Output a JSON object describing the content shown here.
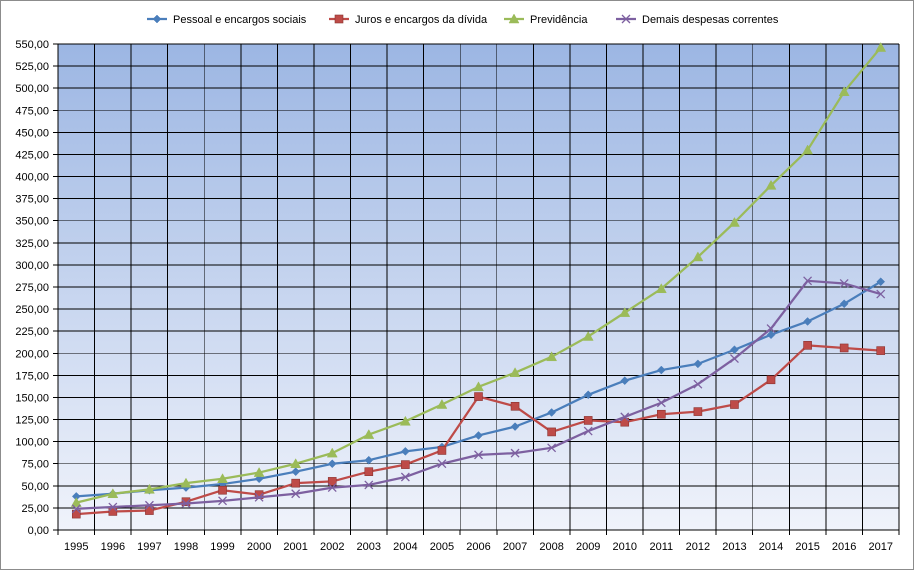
{
  "chart_data": {
    "type": "line",
    "title": "",
    "xlabel": "",
    "ylabel": "",
    "ylim": [
      0,
      550
    ],
    "y_ticks": [
      "0,00",
      "25,00",
      "50,00",
      "75,00",
      "100,00",
      "125,00",
      "150,00",
      "175,00",
      "200,00",
      "225,00",
      "250,00",
      "275,00",
      "300,00",
      "325,00",
      "350,00",
      "375,00",
      "400,00",
      "425,00",
      "450,00",
      "475,00",
      "500,00",
      "525,00",
      "550,00"
    ],
    "categories": [
      "1995",
      "1996",
      "1997",
      "1998",
      "1999",
      "2000",
      "2001",
      "2002",
      "2003",
      "2004",
      "2005",
      "2006",
      "2007",
      "2008",
      "2009",
      "2010",
      "2011",
      "2012",
      "2013",
      "2014",
      "2015",
      "2016",
      "2017"
    ],
    "grid": true,
    "legend_position": "top",
    "series": [
      {
        "name": "Pessoal e encargos sociais",
        "color": "#4a7ebb",
        "marker": "diamond",
        "values": [
          38,
          41,
          45,
          48,
          52,
          58,
          66,
          75,
          79,
          89,
          94,
          107,
          117,
          133,
          153,
          169,
          181,
          188,
          204,
          221,
          236,
          256,
          281
        ]
      },
      {
        "name": "Juros e encargos da dívida",
        "color": "#be4b48",
        "marker": "square",
        "values": [
          18,
          21,
          22,
          32,
          45,
          40,
          53,
          55,
          66,
          74,
          90,
          151,
          140,
          111,
          124,
          122,
          131,
          134,
          142,
          170,
          209,
          206,
          203
        ]
      },
      {
        "name": "Previdência",
        "color": "#9bbb59",
        "marker": "triangle",
        "values": [
          31,
          41,
          46,
          53,
          58,
          65,
          75,
          87,
          108,
          123,
          142,
          162,
          178,
          196,
          219,
          246,
          273,
          309,
          348,
          390,
          430,
          496,
          546
        ]
      },
      {
        "name": "Demais despesas correntes",
        "color": "#7d60a0",
        "marker": "x",
        "values": [
          24,
          26,
          28,
          30,
          33,
          37,
          41,
          48,
          51,
          60,
          75,
          85,
          87,
          93,
          112,
          128,
          144,
          165,
          194,
          228,
          282,
          279,
          267
        ]
      }
    ]
  }
}
